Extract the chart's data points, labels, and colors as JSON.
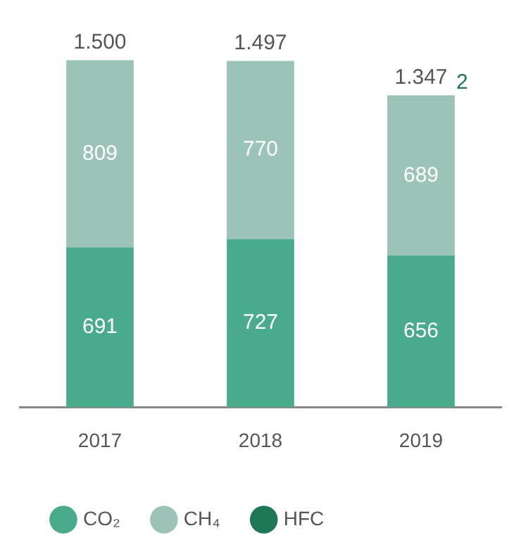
{
  "chart_data": {
    "type": "bar",
    "stacked": true,
    "categories": [
      "2017",
      "2018",
      "2019"
    ],
    "series": [
      {
        "name": "CO₂",
        "color": "#4aab8c",
        "values": [
          691,
          727,
          656
        ]
      },
      {
        "name": "CH₄",
        "color": "#9cc3b7",
        "values": [
          809,
          770,
          689
        ]
      },
      {
        "name": "HFC",
        "color": "#1e7856",
        "values": [
          null,
          null,
          2
        ]
      }
    ],
    "data_labels": true,
    "totals": [
      "1.500",
      "1.497",
      "1.347"
    ],
    "legend": "bottom",
    "grid": false
  }
}
